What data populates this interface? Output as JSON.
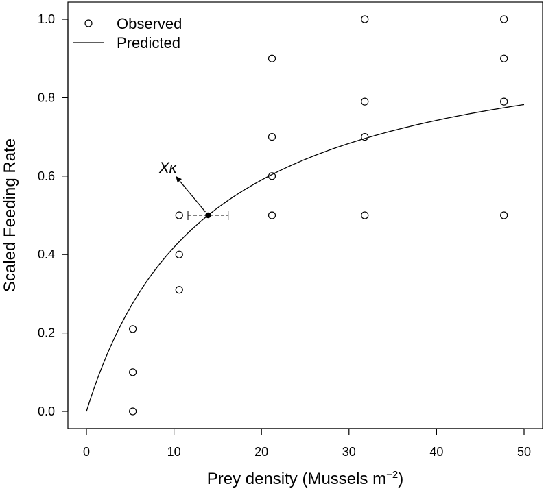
{
  "chart_data": {
    "type": "scatter",
    "xlabel": "Prey density (Mussels m",
    "xlabel_sup": "−2",
    "xlabel_close": ")",
    "ylabel": "Scaled Feeding Rate",
    "xlim": [
      0,
      50
    ],
    "ylim": [
      0,
      1.0
    ],
    "x_ticks": [
      0,
      10,
      20,
      30,
      40,
      50
    ],
    "x_tick_labels": [
      "0",
      "10",
      "20",
      "30",
      "40",
      "50"
    ],
    "y_ticks": [
      0.0,
      0.2,
      0.4,
      0.6,
      0.8,
      1.0
    ],
    "y_tick_labels": [
      "0.0",
      "0.2",
      "0.4",
      "0.6",
      "0.8",
      "1.0"
    ],
    "grid": false,
    "legend_position": "top-left",
    "series": [
      {
        "name": "Observed",
        "kind": "points",
        "marker": "open-circle",
        "points": [
          [
            5.3,
            0.0
          ],
          [
            5.3,
            0.1
          ],
          [
            5.3,
            0.21
          ],
          [
            10.6,
            0.31
          ],
          [
            10.6,
            0.4
          ],
          [
            10.6,
            0.5
          ],
          [
            21.2,
            0.5
          ],
          [
            21.2,
            0.6
          ],
          [
            21.2,
            0.7
          ],
          [
            21.2,
            0.9
          ],
          [
            31.8,
            0.5
          ],
          [
            31.8,
            0.7
          ],
          [
            31.8,
            0.79
          ],
          [
            31.8,
            1.0
          ],
          [
            47.7,
            0.5
          ],
          [
            47.7,
            0.79
          ],
          [
            47.7,
            0.9
          ],
          [
            47.7,
            1.0
          ]
        ]
      },
      {
        "name": "Predicted",
        "kind": "line",
        "model": "saturating",
        "half_saturation": 13.9,
        "x_range": [
          0,
          50
        ]
      }
    ],
    "annotations": {
      "point_label": "Xκ",
      "point": [
        13.9,
        0.5
      ],
      "error_bar_x": [
        11.6,
        16.2
      ],
      "arrow_to": [
        10.2,
        0.6
      ]
    }
  }
}
